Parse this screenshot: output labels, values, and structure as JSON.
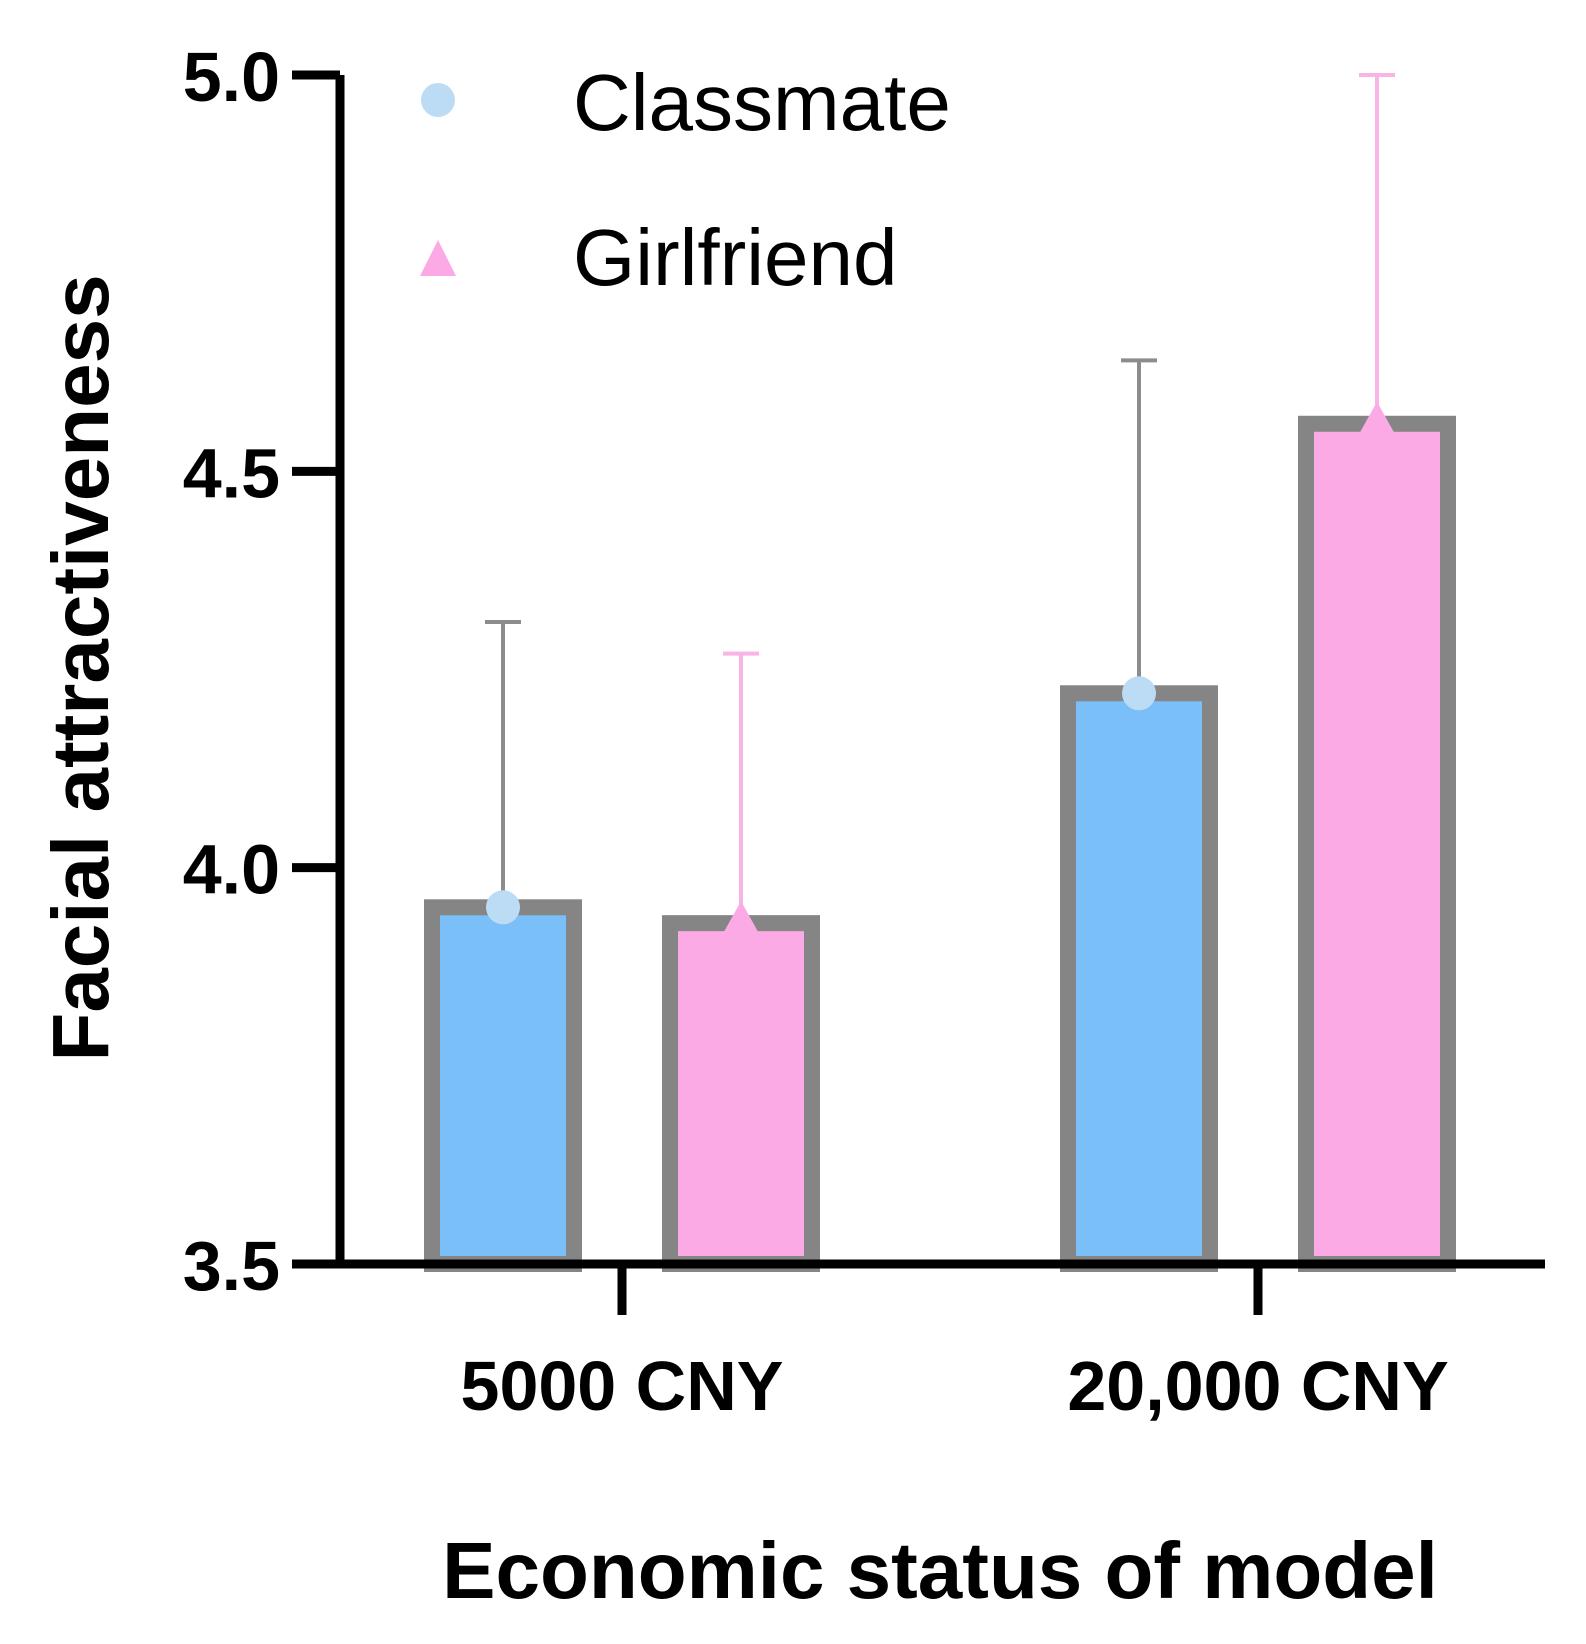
{
  "chart_data": {
    "type": "bar",
    "title": "",
    "xlabel": "Economic status of model",
    "ylabel": "Facial attractiveness",
    "ylim": [
      3.5,
      5.0
    ],
    "yticks": [
      3.5,
      4.0,
      4.5,
      5.0
    ],
    "ytick_labels": [
      "3.5",
      "4.0",
      "4.5",
      "5.0"
    ],
    "categories": [
      "5000 CNY",
      "20,000 CNY"
    ],
    "legend_position": "top-left",
    "series": [
      {
        "name": "Classmate",
        "marker": "circle",
        "color": "#7bbff9",
        "marker_color": "#bcdcf6",
        "error_color": "#8c8c8c",
        "values": [
          3.95,
          4.22
        ],
        "error_upper": [
          4.31,
          4.64
        ]
      },
      {
        "name": "Girlfriend",
        "marker": "triangle",
        "color": "#fcaae6",
        "marker_color": "#fcaae6",
        "error_color": "#f9b4e6",
        "values": [
          3.93,
          4.56
        ],
        "error_upper": [
          4.27,
          5.0
        ]
      }
    ],
    "bar_edge_color": "#858585",
    "grid": false
  }
}
